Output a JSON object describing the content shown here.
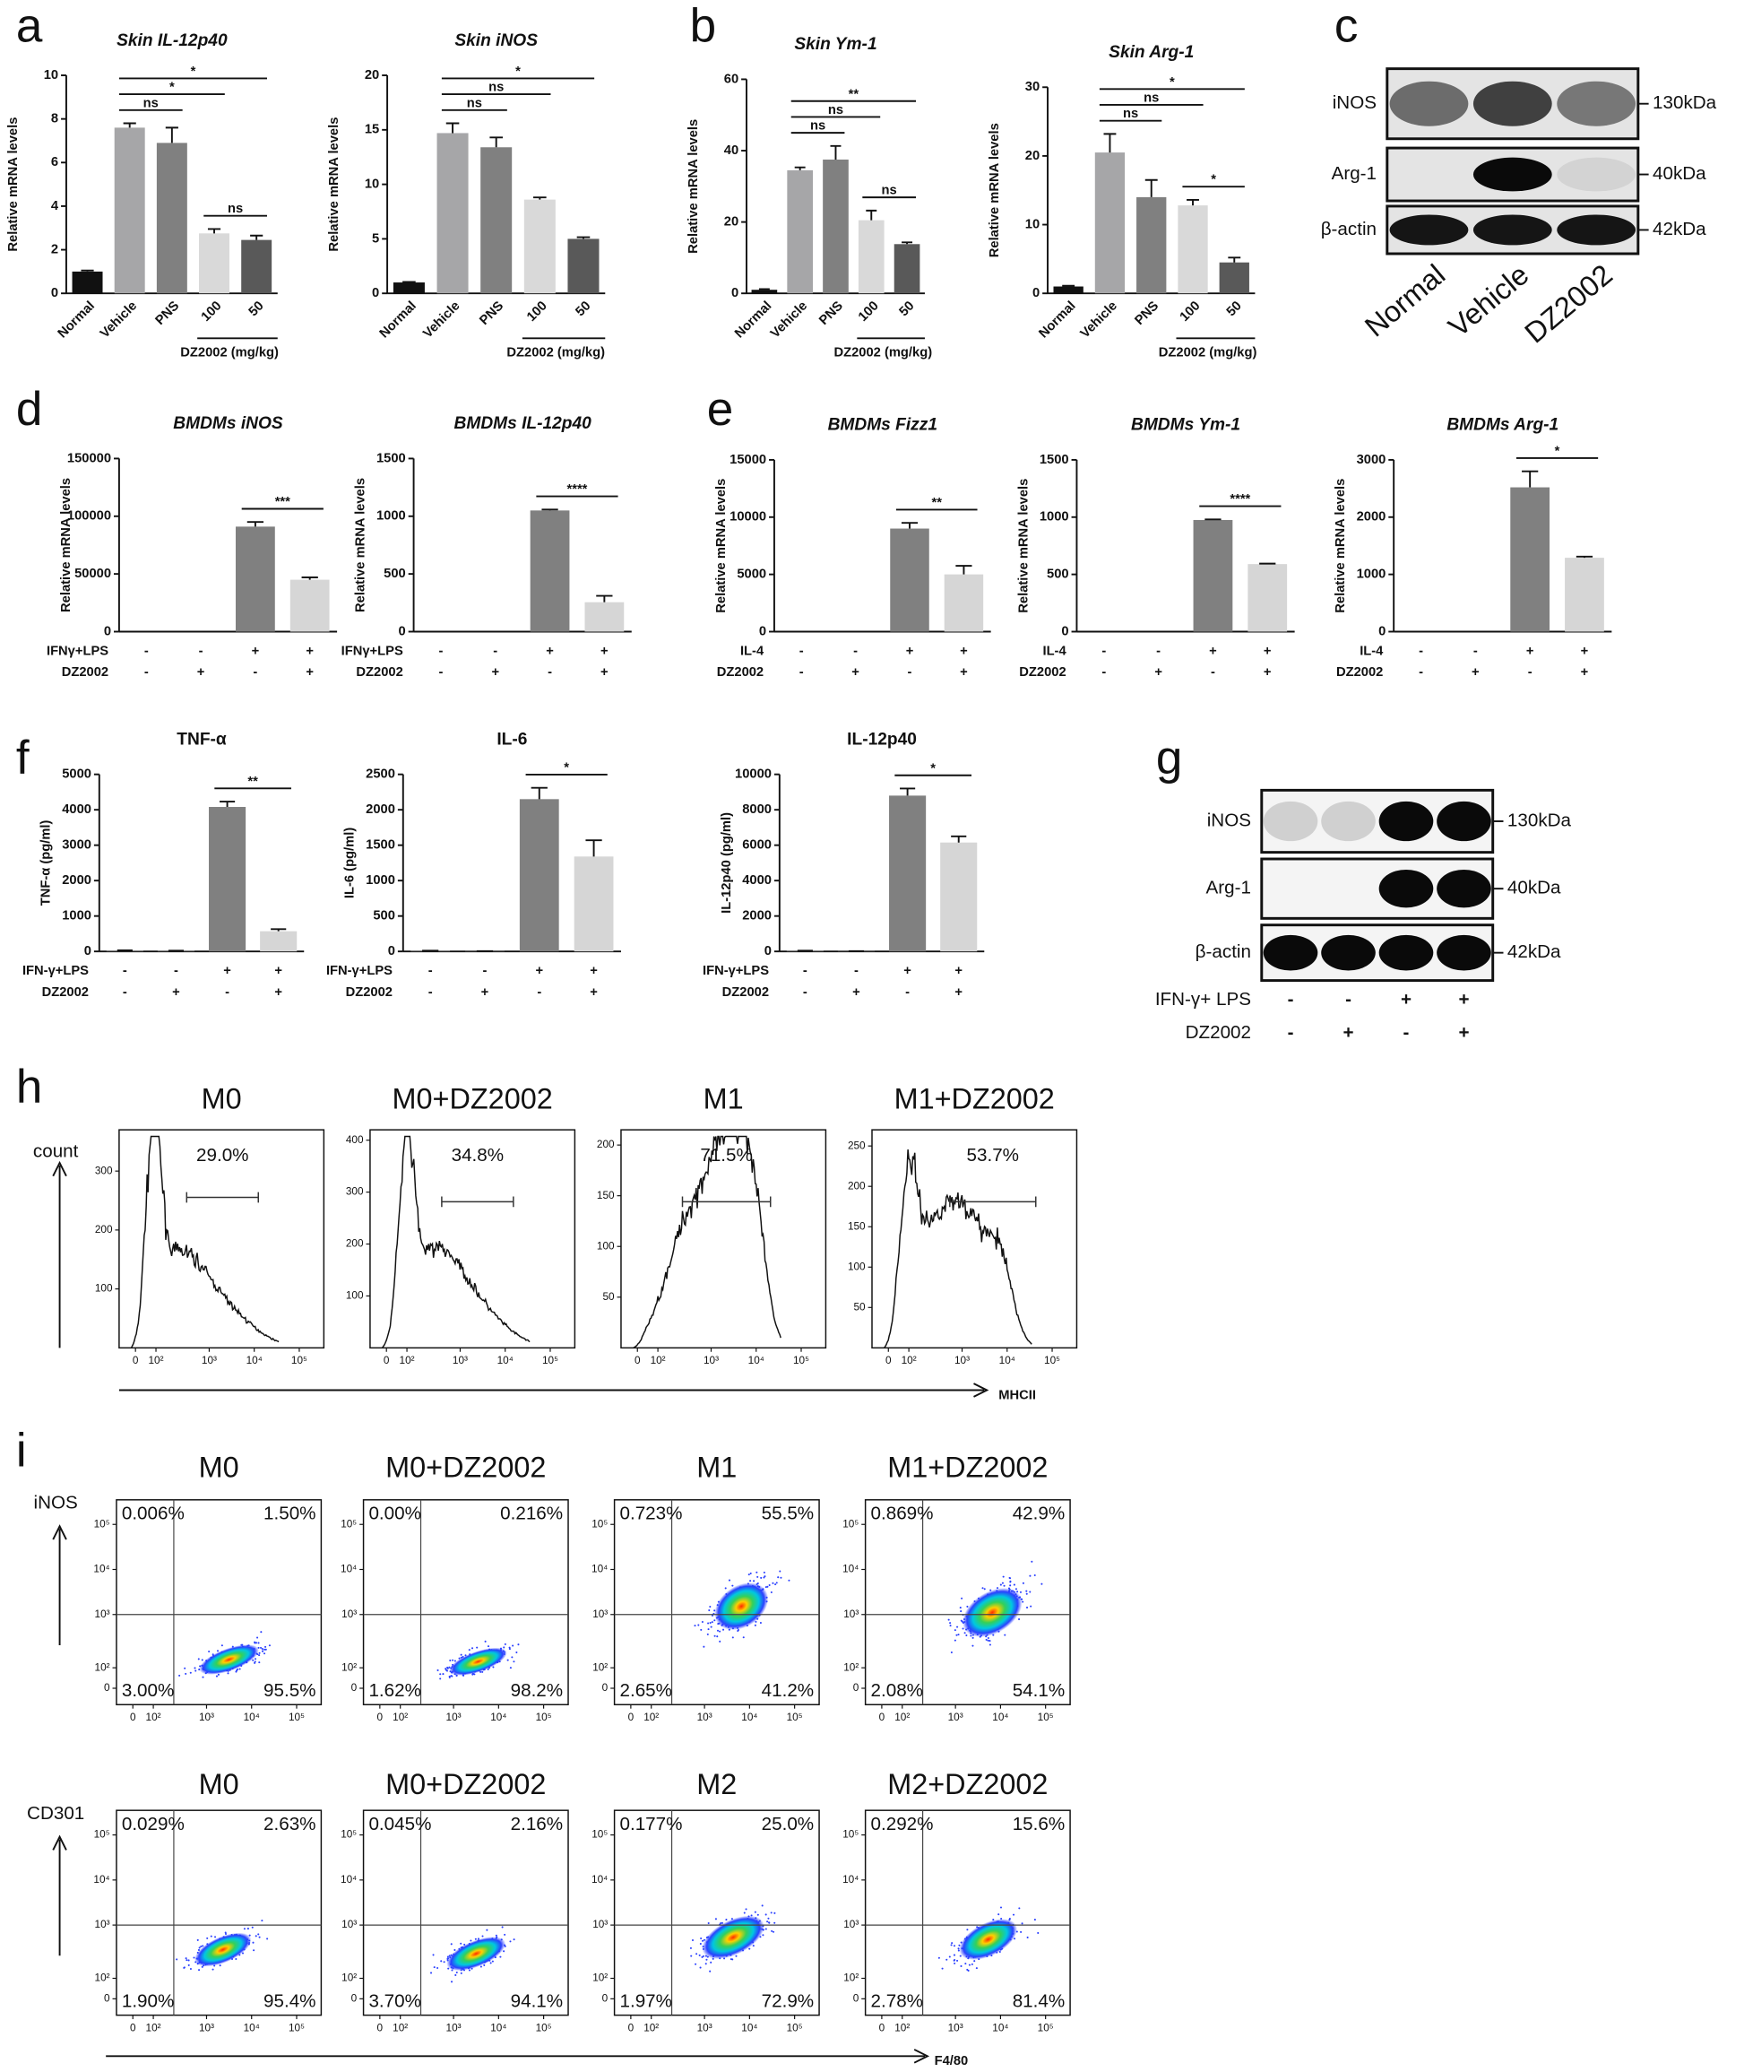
{
  "panel_labels": [
    "a",
    "b",
    "c",
    "d",
    "e",
    "f",
    "g",
    "h",
    "i"
  ],
  "chart_data": [
    {
      "type": "bar",
      "title": "Skin IL-12p40",
      "ylabel": "Relative mRNA levels",
      "categories": [
        "Normal",
        "Vehicle",
        "PNS",
        "100",
        "50"
      ],
      "group_label": "DZ2002 (mg/kg)",
      "values": [
        1,
        7.6,
        6.9,
        2.75,
        2.45
      ],
      "errors": [
        0.05,
        0.2,
        0.7,
        0.2,
        0.2
      ],
      "colors": [
        "#111111",
        "#a6a6a8",
        "#808080",
        "#d9d9d9",
        "#595959"
      ],
      "ylim": [
        0,
        10
      ],
      "yticks": [
        0,
        2,
        4,
        6,
        8,
        10
      ],
      "significance": [
        {
          "between": [
            "Vehicle",
            "PNS"
          ],
          "label": "ns"
        },
        {
          "between": [
            "100",
            "50"
          ],
          "label": "ns"
        },
        {
          "between": [
            "Vehicle",
            "100"
          ],
          "label": "*"
        },
        {
          "between": [
            "Vehicle",
            "50"
          ],
          "label": "*"
        }
      ]
    },
    {
      "type": "bar",
      "title": "Skin iNOS",
      "ylabel": "Relative mRNA levels",
      "categories": [
        "Normal",
        "Vehicle",
        "PNS",
        "100",
        "50"
      ],
      "group_label": "DZ2002 (mg/kg)",
      "values": [
        1,
        14.7,
        13.4,
        8.6,
        5.0
      ],
      "errors": [
        0.05,
        0.9,
        0.9,
        0.2,
        0.15
      ],
      "colors": [
        "#111111",
        "#a6a6a8",
        "#808080",
        "#d9d9d9",
        "#595959"
      ],
      "ylim": [
        0,
        20
      ],
      "yticks": [
        0,
        5,
        10,
        15,
        20
      ],
      "significance": [
        {
          "between": [
            "Vehicle",
            "PNS"
          ],
          "label": "ns"
        },
        {
          "between": [
            "Vehicle",
            "100"
          ],
          "label": "ns"
        },
        {
          "between": [
            "Vehicle",
            "50"
          ],
          "label": "*"
        }
      ]
    },
    {
      "type": "bar",
      "title": "Skin Ym-1",
      "ylabel": "Relative mRNA levels",
      "categories": [
        "Normal",
        "Vehicle",
        "PNS",
        "100",
        "50"
      ],
      "group_label": "DZ2002 (mg/kg)",
      "values": [
        1,
        34.5,
        37.5,
        20.5,
        13.8
      ],
      "errors": [
        0.2,
        0.8,
        3.8,
        2.7,
        0.5
      ],
      "colors": [
        "#111111",
        "#a6a6a8",
        "#808080",
        "#d9d9d9",
        "#595959"
      ],
      "ylim": [
        0,
        60
      ],
      "yticks": [
        0,
        20,
        40,
        60
      ],
      "significance": [
        {
          "between": [
            "Vehicle",
            "PNS"
          ],
          "label": "ns"
        },
        {
          "between": [
            "100",
            "50"
          ],
          "label": "ns"
        },
        {
          "between": [
            "Vehicle",
            "100"
          ],
          "label": "ns"
        },
        {
          "between": [
            "Vehicle",
            "50"
          ],
          "label": "**"
        }
      ]
    },
    {
      "type": "bar",
      "title": "Skin Arg-1",
      "ylabel": "Relative mRNA levels",
      "categories": [
        "Normal",
        "Vehicle",
        "PNS",
        "100",
        "50"
      ],
      "group_label": "DZ2002 (mg/kg)",
      "values": [
        1,
        20.5,
        14,
        12.8,
        4.5
      ],
      "errors": [
        0.1,
        2.7,
        2.5,
        0.8,
        0.7
      ],
      "colors": [
        "#111111",
        "#a6a6a8",
        "#808080",
        "#d9d9d9",
        "#595959"
      ],
      "ylim": [
        0,
        30
      ],
      "yticks": [
        0,
        10,
        20,
        30
      ],
      "significance": [
        {
          "between": [
            "Vehicle",
            "PNS"
          ],
          "label": "ns"
        },
        {
          "between": [
            "100",
            "50"
          ],
          "label": "*"
        },
        {
          "between": [
            "Vehicle",
            "100"
          ],
          "label": "ns"
        },
        {
          "between": [
            "Vehicle",
            "50"
          ],
          "label": "*"
        }
      ]
    },
    {
      "type": "bar",
      "title": "BMDMs iNOS",
      "ylabel": "Relative mRNA levels",
      "conditions": [
        {
          "name": "IFNγ+LPS",
          "signs": [
            "-",
            "-",
            "+",
            "+"
          ]
        },
        {
          "name": "DZ2002",
          "signs": [
            "-",
            "+",
            "-",
            "+"
          ]
        }
      ],
      "values": [
        0,
        0,
        91000,
        45000
      ],
      "errors": [
        0,
        0,
        4000,
        2000
      ],
      "colors": [
        "#808080",
        "#808080",
        "#808080",
        "#d6d6d6"
      ],
      "ylim": [
        0,
        150000
      ],
      "yticks": [
        0,
        50000,
        100000,
        150000
      ],
      "significance": [
        {
          "label": "***"
        }
      ]
    },
    {
      "type": "bar",
      "title": "BMDMs IL-12p40",
      "ylabel": "Relative mRNA levels",
      "conditions": [
        {
          "name": "IFNγ+LPS",
          "signs": [
            "-",
            "-",
            "+",
            "+"
          ]
        },
        {
          "name": "DZ2002",
          "signs": [
            "-",
            "+",
            "-",
            "+"
          ]
        }
      ],
      "values": [
        0,
        0,
        1050,
        255
      ],
      "errors": [
        0,
        0,
        8,
        55
      ],
      "colors": [
        "#808080",
        "#808080",
        "#808080",
        "#d6d6d6"
      ],
      "ylim": [
        0,
        1500
      ],
      "yticks": [
        0,
        500,
        1000,
        1500
      ],
      "significance": [
        {
          "label": "****"
        }
      ]
    },
    {
      "type": "bar",
      "title": "BMDMs Fizz1",
      "ylabel": "Relative mRNA levels",
      "conditions": [
        {
          "name": "IL-4",
          "signs": [
            "-",
            "-",
            "+",
            "+"
          ]
        },
        {
          "name": "DZ2002",
          "signs": [
            "-",
            "+",
            "-",
            "+"
          ]
        }
      ],
      "values": [
        0,
        0,
        9000,
        5000
      ],
      "errors": [
        0,
        0,
        500,
        750
      ],
      "colors": [
        "#808080",
        "#808080",
        "#808080",
        "#d6d6d6"
      ],
      "ylim": [
        0,
        15000
      ],
      "yticks": [
        0,
        5000,
        10000,
        15000
      ],
      "significance": [
        {
          "label": "**"
        }
      ]
    },
    {
      "type": "bar",
      "title": "BMDMs Ym-1",
      "ylabel": "Relative mRNA levels",
      "conditions": [
        {
          "name": "IL-4",
          "signs": [
            "-",
            "-",
            "+",
            "+"
          ]
        },
        {
          "name": "DZ2002",
          "signs": [
            "-",
            "+",
            "-",
            "+"
          ]
        }
      ],
      "values": [
        0,
        0,
        975,
        590
      ],
      "errors": [
        0,
        0,
        5,
        4
      ],
      "colors": [
        "#808080",
        "#808080",
        "#808080",
        "#d6d6d6"
      ],
      "ylim": [
        0,
        1500
      ],
      "yticks": [
        0,
        500,
        1000,
        1500
      ],
      "significance": [
        {
          "label": "****"
        }
      ]
    },
    {
      "type": "bar",
      "title": "BMDMs Arg-1",
      "ylabel": "Relative mRNA levels",
      "conditions": [
        {
          "name": "IL-4",
          "signs": [
            "-",
            "-",
            "+",
            "+"
          ]
        },
        {
          "name": "DZ2002",
          "signs": [
            "-",
            "+",
            "-",
            "+"
          ]
        }
      ],
      "values": [
        0,
        0,
        2520,
        1290
      ],
      "errors": [
        0,
        0,
        280,
        20
      ],
      "colors": [
        "#808080",
        "#808080",
        "#808080",
        "#d6d6d6"
      ],
      "ylim": [
        0,
        3000
      ],
      "yticks": [
        0,
        1000,
        2000,
        3000
      ],
      "significance": [
        {
          "label": "*"
        }
      ]
    },
    {
      "type": "bar",
      "title": "TNF-α",
      "ylabel": "TNF-α (pg/ml)",
      "conditions": [
        {
          "name": "IFN-γ+LPS",
          "signs": [
            "-",
            "-",
            "+",
            "+"
          ]
        },
        {
          "name": "DZ2002",
          "signs": [
            "-",
            "+",
            "-",
            "+"
          ]
        }
      ],
      "values": [
        30,
        20,
        4080,
        570
      ],
      "errors": [
        0,
        0,
        150,
        60
      ],
      "colors": [
        "#808080",
        "#808080",
        "#808080",
        "#d6d6d6"
      ],
      "ylim": [
        0,
        5000
      ],
      "yticks": [
        0,
        1000,
        2000,
        3000,
        4000,
        5000
      ],
      "significance": [
        {
          "label": "**"
        }
      ]
    },
    {
      "type": "bar",
      "title": "IL-6",
      "ylabel": "IL-6 (pg/ml)",
      "conditions": [
        {
          "name": "IFN-γ+LPS",
          "signs": [
            "-",
            "-",
            "+",
            "+"
          ]
        },
        {
          "name": "DZ2002",
          "signs": [
            "-",
            "+",
            "-",
            "+"
          ]
        }
      ],
      "values": [
        10,
        5,
        2150,
        1340
      ],
      "errors": [
        0,
        0,
        160,
        230
      ],
      "colors": [
        "#808080",
        "#808080",
        "#808080",
        "#d6d6d6"
      ],
      "ylim": [
        0,
        2500
      ],
      "yticks": [
        0,
        500,
        1000,
        1500,
        2000,
        2500
      ],
      "significance": [
        {
          "label": "*"
        }
      ]
    },
    {
      "type": "bar",
      "title": "IL-12p40",
      "ylabel": "IL-12p40 (pg/ml)",
      "conditions": [
        {
          "name": "IFN-γ+LPS",
          "signs": [
            "-",
            "-",
            "+",
            "+"
          ]
        },
        {
          "name": "DZ2002",
          "signs": [
            "-",
            "+",
            "-",
            "+"
          ]
        }
      ],
      "values": [
        40,
        20,
        8800,
        6150
      ],
      "errors": [
        0,
        0,
        400,
        350
      ],
      "colors": [
        "#808080",
        "#808080",
        "#808080",
        "#d6d6d6"
      ],
      "ylim": [
        0,
        10000
      ],
      "yticks": [
        0,
        2000,
        4000,
        6000,
        8000,
        10000
      ],
      "significance": [
        {
          "label": "*"
        }
      ]
    }
  ],
  "blots": [
    {
      "rows": [
        {
          "protein": "iNOS",
          "size": "130kDa"
        },
        {
          "protein": "Arg-1",
          "size": "40kDa"
        },
        {
          "protein": "β-actin",
          "size": "42kDa"
        }
      ],
      "lanes": [
        "Normal",
        "Vehicle",
        "DZ2002"
      ]
    },
    {
      "rows": [
        {
          "protein": "iNOS",
          "size": "130kDa"
        },
        {
          "protein": "Arg-1",
          "size": "40kDa"
        },
        {
          "protein": "β-actin",
          "size": "42kDa"
        }
      ],
      "conditions": [
        {
          "name": "IFN-γ+ LPS",
          "signs": [
            "-",
            "-",
            "+",
            "+"
          ]
        },
        {
          "name": "DZ2002",
          "signs": [
            "-",
            "+",
            "-",
            "+"
          ]
        }
      ]
    }
  ],
  "histograms": {
    "y_label": "count",
    "x_label": "MHCII",
    "x_ticks": [
      "0",
      "10²",
      "10³",
      "10⁴",
      "10⁵"
    ],
    "panels": [
      {
        "title": "M0",
        "gate": "29.0%",
        "y_ticks": [
          "100",
          "200",
          "300"
        ]
      },
      {
        "title": "M0+DZ2002",
        "gate": "34.8%",
        "y_ticks": [
          "100",
          "200",
          "300",
          "400"
        ]
      },
      {
        "title": "M1",
        "gate": "71.5%",
        "y_ticks": [
          "50",
          "100",
          "150",
          "200"
        ]
      },
      {
        "title": "M1+DZ2002",
        "gate": "53.7%",
        "y_ticks": [
          "50",
          "100",
          "150",
          "200",
          "250"
        ]
      }
    ]
  },
  "dot_plots": {
    "x_label": "F4/80",
    "x_ticks": [
      "0",
      "10²",
      "10³",
      "10⁴",
      "10⁵"
    ],
    "y_ticks": [
      "0",
      "10²",
      "10³",
      "10⁴",
      "10⁵"
    ],
    "rows": [
      {
        "y_label": "iNOS",
        "panels": [
          {
            "title": "M0",
            "quadrants": [
              "0.006%",
              "1.50%",
              "3.00%",
              "95.5%"
            ]
          },
          {
            "title": "M0+DZ2002",
            "quadrants": [
              "0.00%",
              "0.216%",
              "1.62%",
              "98.2%"
            ]
          },
          {
            "title": "M1",
            "quadrants": [
              "0.723%",
              "55.5%",
              "2.65%",
              "41.2%"
            ]
          },
          {
            "title": "M1+DZ2002",
            "quadrants": [
              "0.869%",
              "42.9%",
              "2.08%",
              "54.1%"
            ]
          }
        ]
      },
      {
        "y_label": "CD301",
        "panels": [
          {
            "title": "M0",
            "quadrants": [
              "0.029%",
              "2.63%",
              "1.90%",
              "95.4%"
            ]
          },
          {
            "title": "M0+DZ2002",
            "quadrants": [
              "0.045%",
              "2.16%",
              "3.70%",
              "94.1%"
            ]
          },
          {
            "title": "M2",
            "quadrants": [
              "0.177%",
              "25.0%",
              "1.97%",
              "72.9%"
            ]
          },
          {
            "title": "M2+DZ2002",
            "quadrants": [
              "0.292%",
              "15.6%",
              "2.78%",
              "81.4%"
            ]
          }
        ]
      }
    ]
  }
}
